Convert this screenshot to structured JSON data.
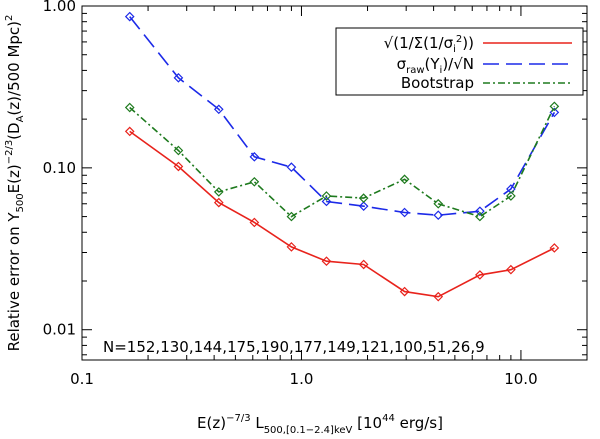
{
  "chart_data": {
    "type": "line",
    "x_scale": "log",
    "y_scale": "log",
    "xlim": [
      0.1,
      20
    ],
    "ylim": [
      0.0065,
      1.0
    ],
    "x_ticks": [
      {
        "value": 0.1,
        "label": "0.1"
      },
      {
        "value": 1.0,
        "label": "1.0"
      },
      {
        "value": 10.0,
        "label": "10.0"
      }
    ],
    "y_ticks": [
      {
        "value": 0.01,
        "label": "0.01"
      },
      {
        "value": 0.1,
        "label": "0.10"
      },
      {
        "value": 1.0,
        "label": "1.00"
      }
    ],
    "xlabel": {
      "prefix": "E(z)",
      "exp": "−7/3",
      "mid": " L",
      "sub": "500,[0.1−2.4]keV",
      "unit_pre": " [10",
      "unit_exp": "44",
      "unit_post": " erg/s]"
    },
    "ylabel": {
      "p1": "Relative error on Y",
      "s1": "500",
      "p2": "E(z)",
      "e1": "−2/3",
      "p3": "(D",
      "s2": "A",
      "p4": "(z)/500 Mpc)",
      "e2": "2"
    },
    "annotation": "N=152,130,144,175,190,177,149,121,100,51,26,9",
    "series": [
      {
        "name": "√(1/Σ(1/σ_i²))",
        "color": "#e8231c",
        "dash": "solid",
        "x": [
          0.165,
          0.275,
          0.42,
          0.61,
          0.9,
          1.3,
          1.92,
          2.95,
          4.2,
          6.5,
          9.0,
          14.2
        ],
        "values": [
          0.168,
          0.102,
          0.061,
          0.046,
          0.0325,
          0.0265,
          0.0253,
          0.0172,
          0.016,
          0.0218,
          0.0235,
          0.032
        ]
      },
      {
        "name": "σ_raw(Y_i)/√N",
        "color": "#1c2ae8",
        "dash": "longdash",
        "x": [
          0.165,
          0.275,
          0.42,
          0.61,
          0.9,
          1.3,
          1.92,
          2.95,
          4.2,
          6.5,
          9.0,
          14.2
        ],
        "values": [
          0.86,
          0.36,
          0.23,
          0.117,
          0.101,
          0.062,
          0.058,
          0.053,
          0.051,
          0.054,
          0.074,
          0.22
        ]
      },
      {
        "name": "Bootstrap",
        "color": "#1e7a1e",
        "dash": "dashdot",
        "x": [
          0.165,
          0.275,
          0.42,
          0.61,
          0.9,
          1.3,
          1.92,
          2.95,
          4.2,
          6.5,
          9.0,
          14.2
        ],
        "values": [
          0.236,
          0.128,
          0.071,
          0.082,
          0.05,
          0.067,
          0.065,
          0.085,
          0.06,
          0.05,
          0.067,
          0.24
        ]
      }
    ],
    "legend": {
      "position": "top-right",
      "entries": [
        {
          "series": 0,
          "parts": [
            [
              "√(1/Σ(1/σ",
              "n"
            ],
            [
              "i",
              "sub"
            ],
            [
              "2",
              "sup"
            ],
            [
              "))",
              "n"
            ]
          ]
        },
        {
          "series": 1,
          "parts": [
            [
              "σ",
              "n"
            ],
            [
              "raw",
              "sub"
            ],
            [
              "(Y",
              "n"
            ],
            [
              "i",
              "sub"
            ],
            [
              ")/√N",
              "n"
            ]
          ]
        },
        {
          "series": 2,
          "parts": [
            [
              "Bootstrap",
              "n"
            ]
          ]
        }
      ]
    }
  }
}
